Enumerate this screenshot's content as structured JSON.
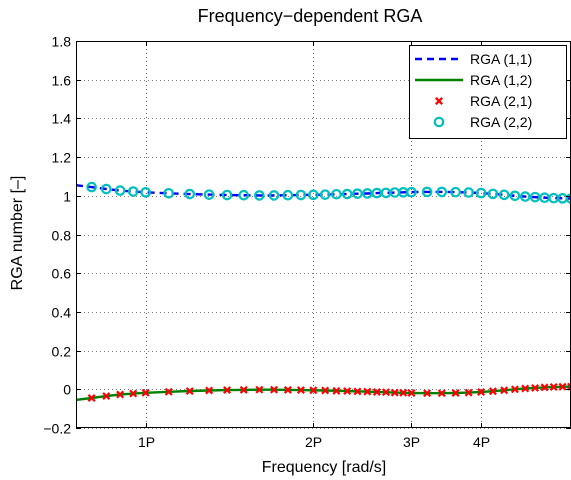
{
  "chart_data": {
    "type": "line",
    "title": "Frequency−dependent RGA",
    "xlabel": "Frequency [rad/s]",
    "ylabel": "RGA number [–]",
    "xscale": "log",
    "xlim": [
      0.75,
      5.8
    ],
    "ylim": [
      -0.2,
      1.8
    ],
    "xticks": [
      {
        "value": 1,
        "label": "1P"
      },
      {
        "value": 2,
        "label": "2P"
      },
      {
        "value": 3,
        "label": "3P"
      },
      {
        "value": 4,
        "label": "4P"
      }
    ],
    "yticks": [
      {
        "value": -0.2,
        "label": "−0.2"
      },
      {
        "value": 0,
        "label": "0"
      },
      {
        "value": 0.2,
        "label": "0.2"
      },
      {
        "value": 0.4,
        "label": "0.4"
      },
      {
        "value": 0.6,
        "label": "0.6"
      },
      {
        "value": 0.8,
        "label": "0.8"
      },
      {
        "value": 1,
        "label": "1"
      },
      {
        "value": 1.2,
        "label": "1.2"
      },
      {
        "value": 1.4,
        "label": "1.4"
      },
      {
        "value": 1.6,
        "label": "1.6"
      },
      {
        "value": 1.8,
        "label": "1.8"
      }
    ],
    "grid": true,
    "legend_position": "top-right",
    "x": [
      0.75,
      0.8,
      0.85,
      0.9,
      0.95,
      1.0,
      1.1,
      1.2,
      1.3,
      1.4,
      1.5,
      1.6,
      1.7,
      1.8,
      1.9,
      2.0,
      2.1,
      2.2,
      2.3,
      2.4,
      2.5,
      2.6,
      2.7,
      2.8,
      2.9,
      3.0,
      3.2,
      3.4,
      3.6,
      3.8,
      4.0,
      4.2,
      4.4,
      4.6,
      4.8,
      5.0,
      5.2,
      5.4,
      5.6,
      5.8
    ],
    "series": [
      {
        "name": "RGA (1,1)",
        "style": "dashed-line",
        "color": "#0000ff",
        "values": [
          1.055,
          1.045,
          1.035,
          1.027,
          1.022,
          1.018,
          1.013,
          1.009,
          1.006,
          1.004,
          1.003,
          1.002,
          1.002,
          1.003,
          1.004,
          1.005,
          1.006,
          1.008,
          1.009,
          1.011,
          1.012,
          1.014,
          1.015,
          1.017,
          1.018,
          1.019,
          1.02,
          1.02,
          1.019,
          1.017,
          1.014,
          1.01,
          1.005,
          1.0,
          0.996,
          0.993,
          0.99,
          0.988,
          0.987,
          0.986
        ]
      },
      {
        "name": "RGA (1,2)",
        "style": "solid-line",
        "color": "#008000",
        "values": [
          -0.055,
          -0.045,
          -0.035,
          -0.027,
          -0.022,
          -0.018,
          -0.013,
          -0.009,
          -0.006,
          -0.004,
          -0.003,
          -0.002,
          -0.002,
          -0.003,
          -0.004,
          -0.005,
          -0.006,
          -0.008,
          -0.009,
          -0.011,
          -0.012,
          -0.014,
          -0.015,
          -0.017,
          -0.018,
          -0.019,
          -0.02,
          -0.02,
          -0.019,
          -0.017,
          -0.014,
          -0.01,
          -0.005,
          0.0,
          0.004,
          0.007,
          0.01,
          0.012,
          0.013,
          0.014
        ]
      },
      {
        "name": "RGA (2,1)",
        "style": "x-markers",
        "color": "#ff0000",
        "values": [
          -0.055,
          -0.045,
          -0.035,
          -0.027,
          -0.022,
          -0.018,
          -0.013,
          -0.009,
          -0.006,
          -0.004,
          -0.003,
          -0.002,
          -0.002,
          -0.003,
          -0.004,
          -0.005,
          -0.006,
          -0.008,
          -0.009,
          -0.011,
          -0.012,
          -0.014,
          -0.015,
          -0.017,
          -0.018,
          -0.019,
          -0.02,
          -0.02,
          -0.019,
          -0.017,
          -0.014,
          -0.01,
          -0.005,
          0.0,
          0.004,
          0.007,
          0.01,
          0.012,
          0.013,
          0.014
        ]
      },
      {
        "name": "RGA (2,2)",
        "style": "circle-markers",
        "color": "#00bfbf",
        "values": [
          1.055,
          1.045,
          1.035,
          1.027,
          1.022,
          1.018,
          1.013,
          1.009,
          1.006,
          1.004,
          1.003,
          1.002,
          1.002,
          1.003,
          1.004,
          1.005,
          1.006,
          1.008,
          1.009,
          1.011,
          1.012,
          1.014,
          1.015,
          1.017,
          1.018,
          1.019,
          1.02,
          1.02,
          1.019,
          1.017,
          1.014,
          1.01,
          1.005,
          1.0,
          0.996,
          0.993,
          0.99,
          0.988,
          0.987,
          0.986
        ]
      }
    ]
  }
}
